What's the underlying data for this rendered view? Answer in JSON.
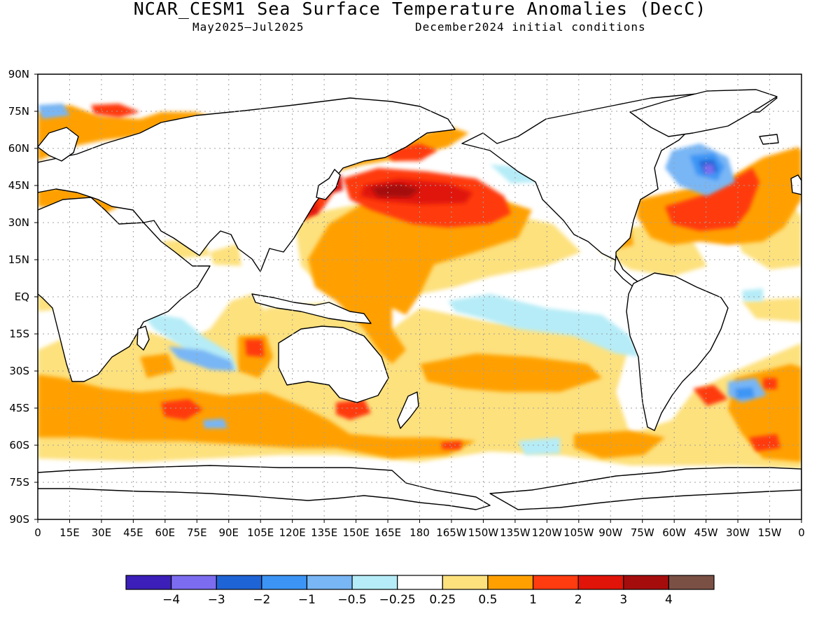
{
  "title": "NCAR_CESM1 Sea Surface Temperature Anomalies (DecC)",
  "subtitle_period": "May2025–Jul2025",
  "subtitle_init": "December2024 initial conditions",
  "lat_labels": [
    "90N",
    "75N",
    "60N",
    "45N",
    "30N",
    "15N",
    "EQ",
    "15S",
    "30S",
    "45S",
    "60S",
    "75S",
    "90S"
  ],
  "lon_labels": [
    "0",
    "15E",
    "30E",
    "45E",
    "60E",
    "75E",
    "90E",
    "105E",
    "120E",
    "135E",
    "150E",
    "165E",
    "180",
    "165W",
    "150W",
    "135W",
    "120W",
    "105W",
    "90W",
    "75W",
    "60W",
    "45W",
    "30W",
    "15W",
    "0"
  ],
  "colorbar": {
    "colors": [
      "#3b1fb8",
      "#7c6cf0",
      "#1f64d6",
      "#3c95f5",
      "#78b6f5",
      "#b5ecf7",
      "#ffffff",
      "#fde17d",
      "#ffa000",
      "#ff3b10",
      "#e01408",
      "#a50d0d",
      "#7b5044"
    ],
    "labels": [
      "−4",
      "−3",
      "−2",
      "−1",
      "−0.5",
      "−0.25",
      "0.25",
      "0.5",
      "1",
      "2",
      "3",
      "4"
    ]
  }
}
